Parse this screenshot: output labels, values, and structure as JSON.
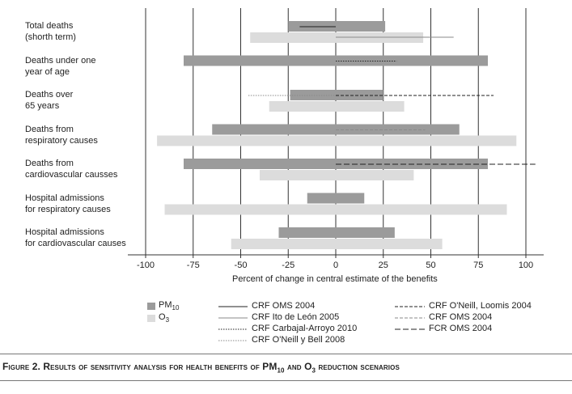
{
  "chart_data": {
    "type": "bar",
    "orientation": "horizontal",
    "title": "",
    "xlabel": "Percent of change in central estimate of the benefits",
    "xlim": [
      -110,
      110
    ],
    "xticks": [
      "-100",
      "-75",
      "-50",
      "-25",
      "0",
      "25",
      "50",
      "75",
      "100"
    ],
    "gridlines": "vertical at major ticks",
    "categories": [
      [
        "Total deaths",
        "(shorth term)"
      ],
      [
        "Deaths under one",
        "year of age"
      ],
      [
        "Deaths over",
        "65 years"
      ],
      [
        "Deaths from",
        "respiratory causes"
      ],
      [
        "Deaths from",
        "cardiovascular causses"
      ],
      [
        "Hospital admissions",
        "for respiratory causes"
      ],
      [
        "Hospital admissions",
        "for cardiovascular causes"
      ]
    ],
    "series": [
      {
        "name": "PM10",
        "color": "#9b9b9b",
        "ranges": [
          [
            -25,
            26
          ],
          [
            -80,
            80
          ],
          [
            -24,
            25
          ],
          [
            -65,
            65
          ],
          [
            -80,
            80
          ],
          [
            -15,
            15
          ],
          [
            -30,
            31
          ]
        ]
      },
      {
        "name": "O3",
        "color": "#dcdcdc",
        "ranges": [
          [
            -45,
            46
          ],
          null,
          [
            -35,
            36
          ],
          [
            -94,
            95
          ],
          [
            -40,
            41
          ],
          [
            -90,
            90
          ],
          [
            -55,
            56
          ]
        ]
      }
    ],
    "line_series": [
      {
        "name": "CRF OMS 2004",
        "style": "solid",
        "color": "#222222",
        "segments": [
          [
            0,
            -19,
            0
          ]
        ]
      },
      {
        "name": "CRF Ito de León 2005",
        "style": "solid",
        "color": "#8a8a8a",
        "segments": [
          [
            0,
            0,
            62
          ]
        ]
      },
      {
        "name": "CRF Carbajal-Arroyo 2010",
        "style": "dotted",
        "color": "#222222",
        "segments": [
          [
            1,
            0,
            32
          ]
        ]
      },
      {
        "name": "CRF O'Neill y Bell 2008",
        "style": "dotted",
        "color": "#8a8a8a",
        "segments": [
          [
            2,
            -46,
            0
          ]
        ]
      },
      {
        "name": "CRF O'Neill, Loomis 2004",
        "style": "dashed",
        "color": "#222222",
        "segments": [
          [
            2,
            0,
            83
          ]
        ]
      },
      {
        "name": "CRF OMS 2004",
        "style": "dashed",
        "color": "#8a8a8a",
        "segments": [
          [
            3,
            0,
            47
          ]
        ]
      },
      {
        "name": "FCR OMS 2004",
        "style": "longdash",
        "color": "#222222",
        "segments": [
          [
            4,
            0,
            105
          ]
        ]
      }
    ],
    "legend": {
      "placement": "bottom",
      "bars": [
        {
          "label": "PM",
          "sub": "10",
          "color": "#9b9b9b"
        },
        {
          "label": "O",
          "sub": "3",
          "color": "#dcdcdc"
        }
      ],
      "lines": [
        {
          "label": "CRF OMS 2004",
          "style": "solid",
          "color": "#222222"
        },
        {
          "label": "CRF Ito de León 2005",
          "style": "solid",
          "color": "#8a8a8a"
        },
        {
          "label": "CRF Carbajal-Arroyo 2010",
          "style": "dotted",
          "color": "#222222"
        },
        {
          "label": "CRF O'Neill y Bell 2008",
          "style": "dotted",
          "color": "#8a8a8a"
        },
        {
          "label": "CRF O'Neill, Loomis 2004",
          "style": "dashed",
          "color": "#222222"
        },
        {
          "label": "CRF OMS 2004",
          "style": "dashed",
          "color": "#8a8a8a"
        },
        {
          "label": "FCR OMS 2004",
          "style": "longdash",
          "color": "#222222"
        }
      ]
    }
  },
  "caption": {
    "prefix": "Figure 2.  Results of sensitivity analysis for health benefits of ",
    "pm": "PM",
    "pm_sub": "10",
    "and": " and ",
    "o": "O",
    "o_sub": "3",
    "suffix": " reduction scenarios"
  }
}
